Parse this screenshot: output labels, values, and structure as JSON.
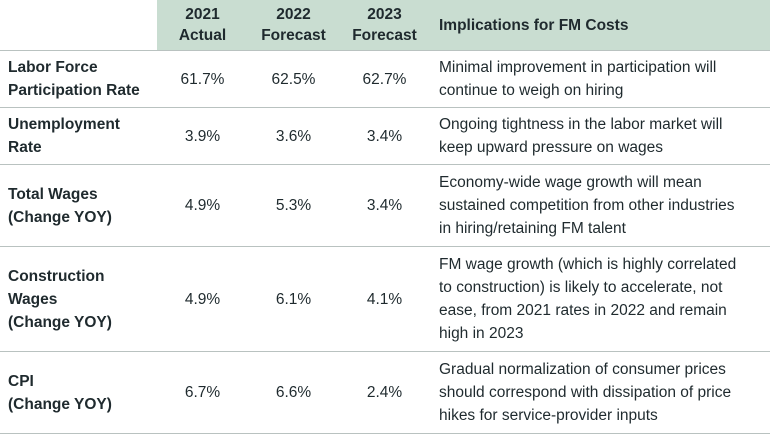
{
  "header": {
    "col_2021_year": "2021",
    "col_2021_kind": "Actual",
    "col_2022_year": "2022",
    "col_2022_kind": "Forecast",
    "col_2023_year": "2023",
    "col_2023_kind": "Forecast",
    "implications": "Implications for FM Costs"
  },
  "rows": [
    {
      "label_lines": [
        "Labor Force",
        "Participation Rate"
      ],
      "v2021": "61.7%",
      "v2022": "62.5%",
      "v2023": "62.7%",
      "implication_lines": [
        "Minimal improvement in participation will",
        "continue to weigh on hiring"
      ]
    },
    {
      "label_lines": [
        "Unemployment",
        "Rate"
      ],
      "v2021": "3.9%",
      "v2022": "3.6%",
      "v2023": "3.4%",
      "implication_lines": [
        "Ongoing tightness in the labor market will",
        "keep upward pressure on wages"
      ]
    },
    {
      "label_lines": [
        "Total Wages",
        "(Change YOY)"
      ],
      "v2021": "4.9%",
      "v2022": "5.3%",
      "v2023": "3.4%",
      "implication_lines": [
        "Economy-wide wage growth will mean",
        "sustained competition from other industries",
        "in hiring/retaining FM talent"
      ]
    },
    {
      "label_lines": [
        "Construction",
        "Wages",
        "(Change YOY)"
      ],
      "v2021": "4.9%",
      "v2022": "6.1%",
      "v2023": "4.1%",
      "implication_lines": [
        "FM wage growth (which is highly correlated",
        "to construction) is likely to accelerate, not",
        "ease, from 2021 rates in 2022 and remain",
        "high in 2023"
      ]
    },
    {
      "label_lines": [
        "CPI",
        "(Change YOY)"
      ],
      "v2021": "6.7%",
      "v2022": "6.6%",
      "v2023": "2.4%",
      "implication_lines": [
        "Gradual normalization of consumer prices",
        "should correspond with dissipation of price",
        "hikes for service-provider inputs"
      ]
    }
  ]
}
